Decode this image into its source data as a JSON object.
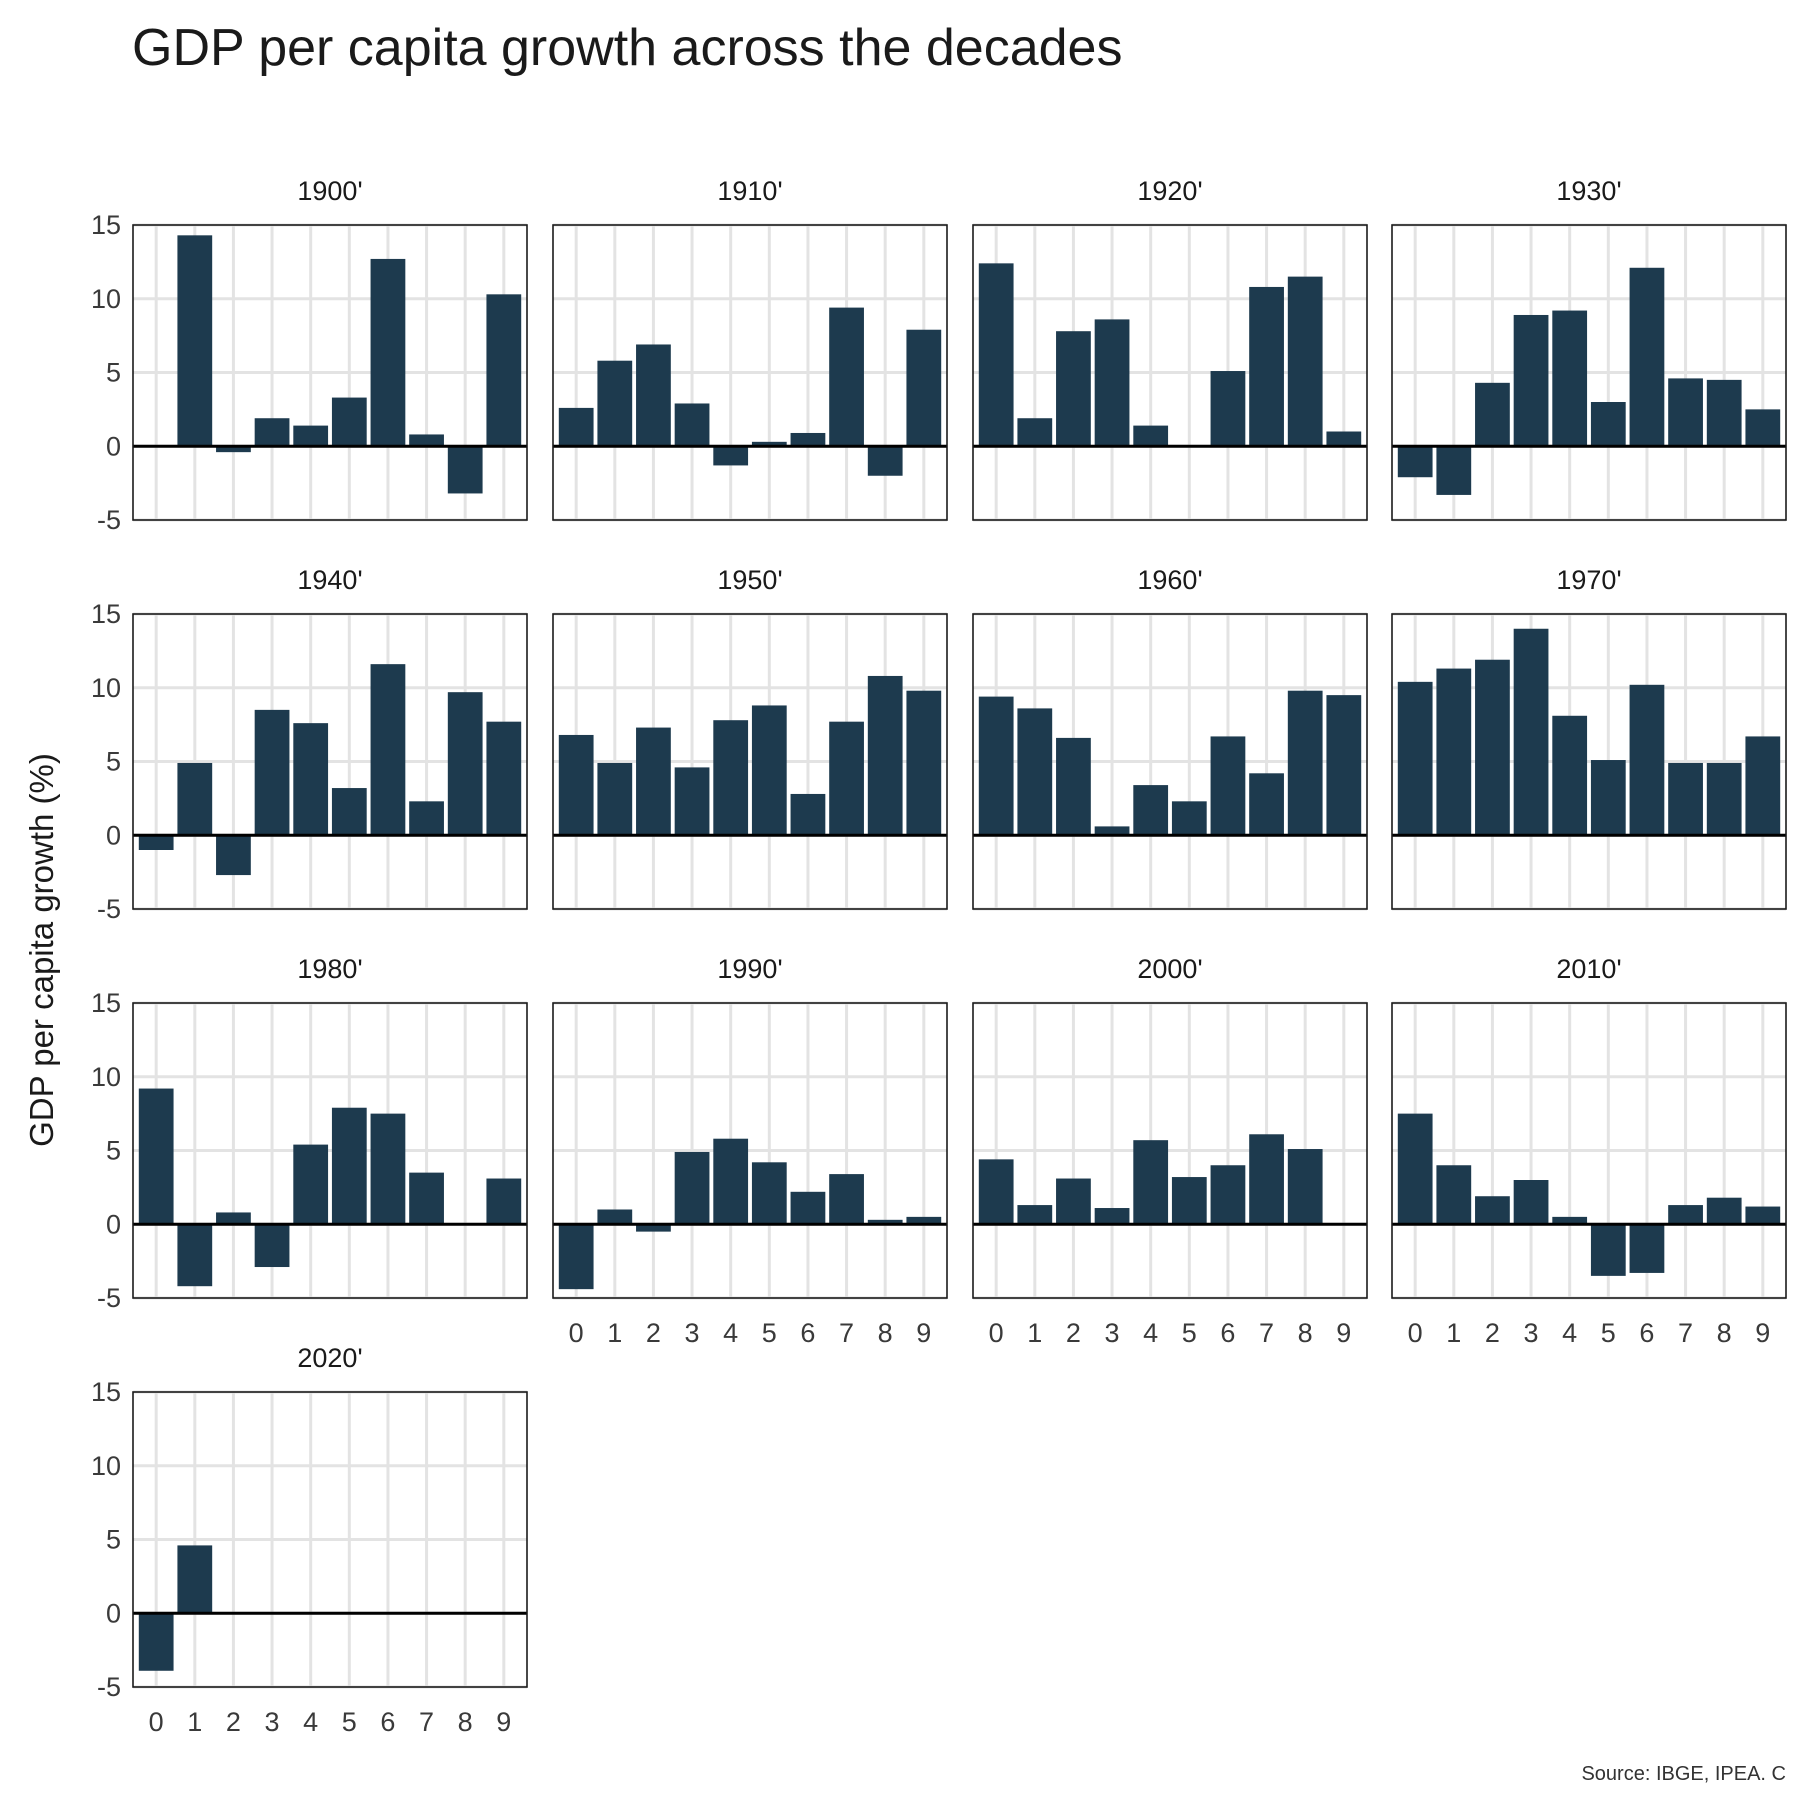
{
  "chart_data": {
    "type": "bar",
    "title": "GDP per capita growth across the decades",
    "ylabel": "GDP per capita growth (%)",
    "xlabel": "",
    "caption": "Source: IBGE, IPEA. C",
    "ylim": [
      -5,
      15
    ],
    "yticks": [
      -5,
      0,
      5,
      10,
      15
    ],
    "xticks": [
      "0",
      "1",
      "2",
      "3",
      "4",
      "5",
      "6",
      "7",
      "8",
      "9"
    ],
    "bar_color": "#1d3a4e",
    "grid": true,
    "facets": [
      {
        "label": "1900'",
        "values": [
          null,
          14.3,
          -0.4,
          1.9,
          1.4,
          3.3,
          12.7,
          0.8,
          -3.2,
          10.3
        ]
      },
      {
        "label": "1910'",
        "values": [
          2.6,
          5.8,
          6.9,
          2.9,
          -1.3,
          0.3,
          0.9,
          9.4,
          -2.0,
          7.9
        ]
      },
      {
        "label": "1920'",
        "values": [
          12.4,
          1.9,
          7.8,
          8.6,
          1.4,
          0.0,
          5.1,
          10.8,
          11.5,
          1.0
        ]
      },
      {
        "label": "1930'",
        "values": [
          -2.1,
          -3.3,
          4.3,
          8.9,
          9.2,
          3.0,
          12.1,
          4.6,
          4.5,
          2.5
        ]
      },
      {
        "label": "1940'",
        "values": [
          -1.0,
          4.9,
          -2.7,
          8.5,
          7.6,
          3.2,
          11.6,
          2.3,
          9.7,
          7.7
        ]
      },
      {
        "label": "1950'",
        "values": [
          6.8,
          4.9,
          7.3,
          4.6,
          7.8,
          8.8,
          2.8,
          7.7,
          10.8,
          9.8
        ]
      },
      {
        "label": "1960'",
        "values": [
          9.4,
          8.6,
          6.6,
          0.6,
          3.4,
          2.3,
          6.7,
          4.2,
          9.8,
          9.5
        ]
      },
      {
        "label": "1970'",
        "values": [
          10.4,
          11.3,
          11.9,
          14.0,
          8.1,
          5.1,
          10.2,
          4.9,
          4.9,
          6.7
        ]
      },
      {
        "label": "1980'",
        "values": [
          9.2,
          -4.2,
          0.8,
          -2.9,
          5.4,
          7.9,
          7.5,
          3.5,
          0.0,
          3.1
        ]
      },
      {
        "label": "1990'",
        "values": [
          -4.4,
          1.0,
          -0.5,
          4.9,
          5.8,
          4.2,
          2.2,
          3.4,
          0.3,
          0.5
        ]
      },
      {
        "label": "2000'",
        "values": [
          4.4,
          1.3,
          3.1,
          1.1,
          5.7,
          3.2,
          4.0,
          6.1,
          5.1,
          0.0
        ]
      },
      {
        "label": "2010'",
        "values": [
          7.5,
          4.0,
          1.9,
          3.0,
          0.5,
          -3.5,
          -3.3,
          1.3,
          1.8,
          1.2
        ]
      },
      {
        "label": "2020'",
        "values": [
          -3.9,
          4.6
        ]
      }
    ]
  }
}
